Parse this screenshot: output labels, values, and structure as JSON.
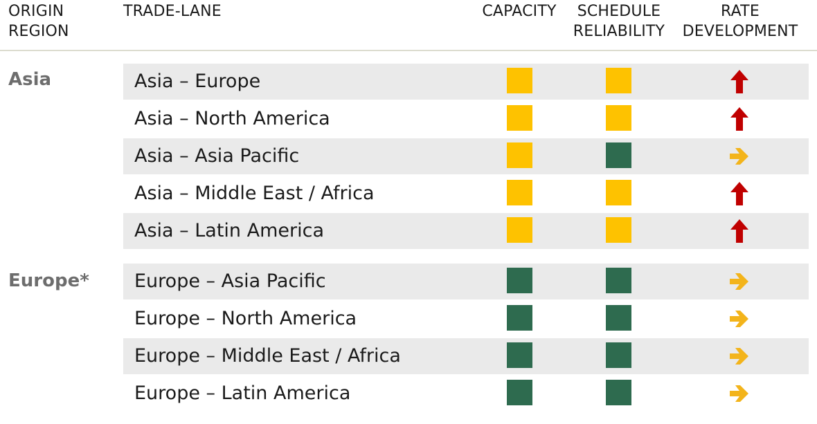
{
  "headers": {
    "origin": [
      "ORIGIN",
      "REGION"
    ],
    "lane": "TRADE-LANE",
    "capacity": "CAPACITY",
    "schedule": [
      "SCHEDULE",
      "RELIABILITY"
    ],
    "rate": [
      "RATE",
      "DEVELOPMENT"
    ]
  },
  "colors": {
    "yellow": "#fec200",
    "green": "#2e6b4f",
    "red_arrow": "#c00000",
    "yellow_arrow": "#f3b41b",
    "shade": "#eaeaea"
  },
  "regions": [
    {
      "name": "Asia",
      "rows": [
        {
          "lane": "Asia – Europe",
          "capacity": "yellow",
          "schedule": "yellow",
          "rate": "up"
        },
        {
          "lane": "Asia – North America",
          "capacity": "yellow",
          "schedule": "yellow",
          "rate": "up"
        },
        {
          "lane": "Asia – Asia Pacific",
          "capacity": "yellow",
          "schedule": "green",
          "rate": "right"
        },
        {
          "lane": "Asia – Middle East / Africa",
          "capacity": "yellow",
          "schedule": "yellow",
          "rate": "up"
        },
        {
          "lane": "Asia – Latin America",
          "capacity": "yellow",
          "schedule": "yellow",
          "rate": "up"
        }
      ]
    },
    {
      "name": "Europe*",
      "rows": [
        {
          "lane": "Europe – Asia Pacific",
          "capacity": "green",
          "schedule": "green",
          "rate": "right"
        },
        {
          "lane": "Europe – North America",
          "capacity": "green",
          "schedule": "green",
          "rate": "right"
        },
        {
          "lane": "Europe – Middle East / Africa",
          "capacity": "green",
          "schedule": "green",
          "rate": "right"
        },
        {
          "lane": "Europe – Latin America",
          "capacity": "green",
          "schedule": "green",
          "rate": "right"
        }
      ]
    }
  ]
}
